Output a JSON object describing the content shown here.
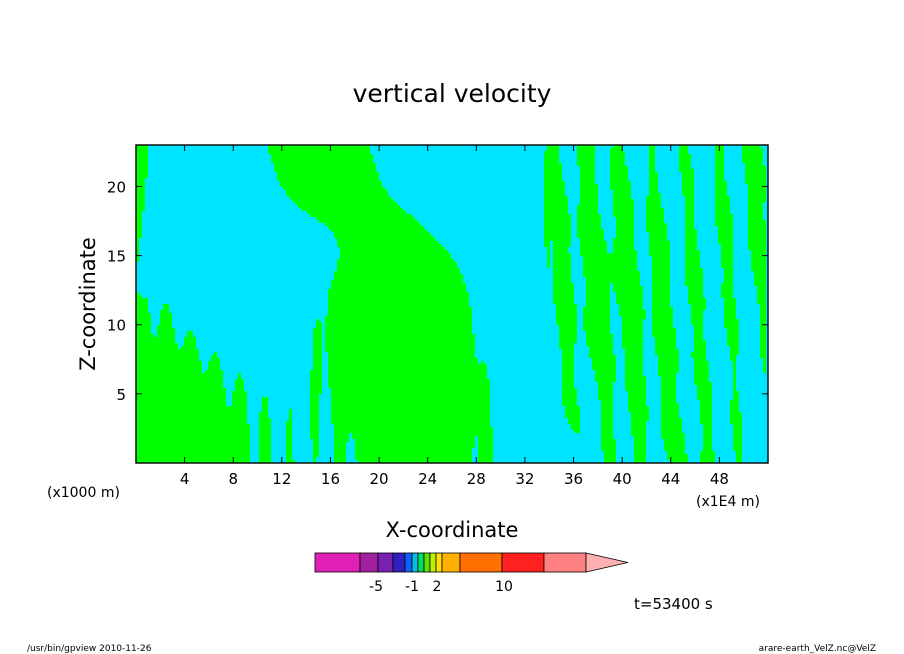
{
  "chart_data": {
    "type": "heatmap",
    "title": "vertical velocity",
    "xlabel": "X-coordinate",
    "ylabel": "Z-coordinate",
    "x_unit_left": "(x1000 m)",
    "x_unit_right": "(x1E4 m)",
    "xlim": [
      0,
      52
    ],
    "ylim": [
      0,
      23
    ],
    "xticks": [
      4,
      8,
      12,
      16,
      20,
      24,
      28,
      32,
      36,
      40,
      44,
      48
    ],
    "yticks": [
      5,
      10,
      15,
      20
    ],
    "time_label": "t=53400 s",
    "colorbar": {
      "colors": [
        "#e21fb5",
        "#a020a0",
        "#7a20b0",
        "#3020c0",
        "#1060ff",
        "#00c0e0",
        "#00e060",
        "#60e000",
        "#c0f000",
        "#ffe000",
        "#ffb000",
        "#ff7000",
        "#ff2020",
        "#ff8080",
        "#ffb0b0"
      ],
      "labels": [
        "-5",
        "-1",
        "2",
        "10"
      ]
    },
    "field_colors": {
      "positive": "#00ff00",
      "negative": "#00e5ff",
      "contour": "#000000"
    }
  },
  "footer": {
    "left": "/usr/bin/gpview  2010-11-26",
    "right": "arare-earth_VelZ.nc@VelZ"
  }
}
